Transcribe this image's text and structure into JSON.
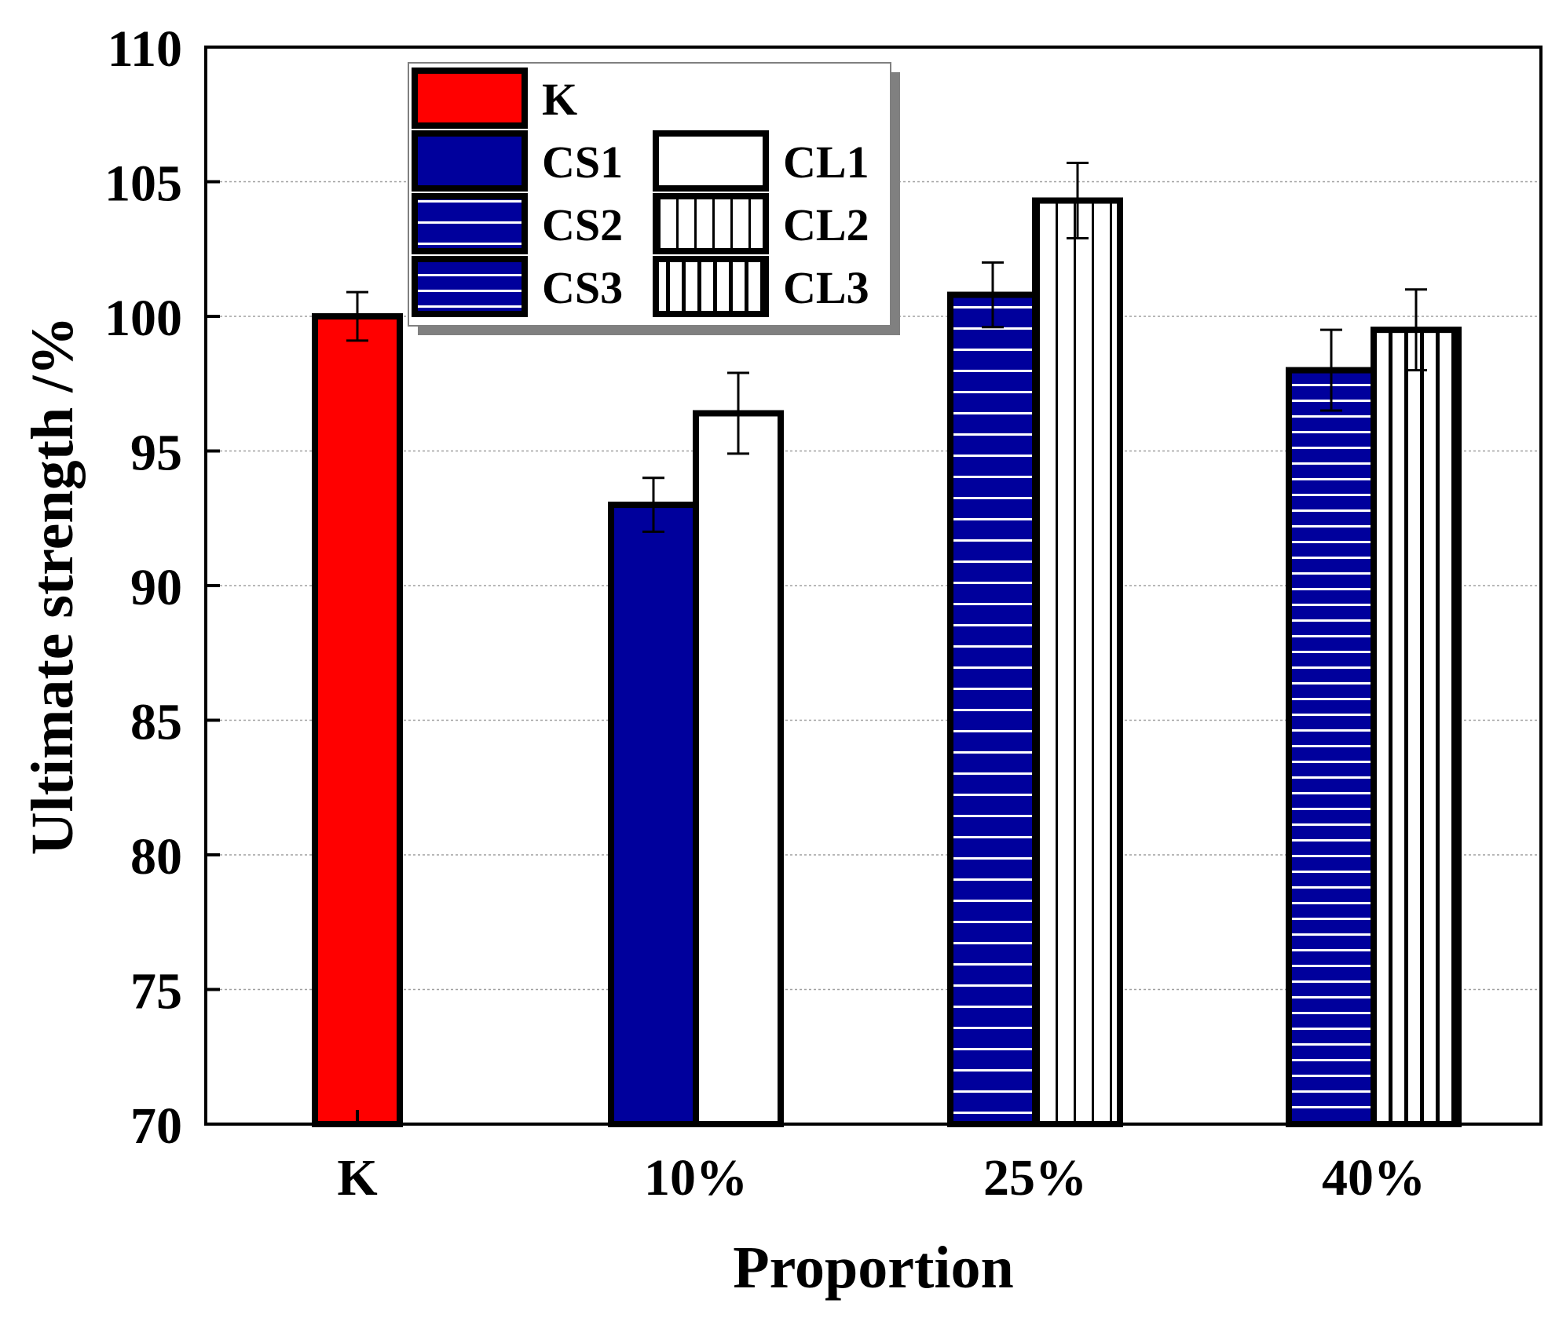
{
  "chart_data": {
    "type": "bar",
    "title": "",
    "xlabel": "Proportion",
    "ylabel": "Ultimate strength /%",
    "ylim": [
      70,
      110
    ],
    "yticks": [
      70,
      75,
      80,
      85,
      90,
      95,
      100,
      105,
      110
    ],
    "grid": true,
    "legend_position": "top-left",
    "categories": [
      "K",
      "10%",
      "25%",
      "40%"
    ],
    "series": [
      {
        "name": "K",
        "category": "K",
        "value": 100.0,
        "error": 0.9,
        "fill": "#ff0000",
        "pattern": "solid"
      },
      {
        "name": "CS1",
        "category": "10%",
        "value": 93.0,
        "error": 1.0,
        "fill": "#00009c",
        "pattern": "solid"
      },
      {
        "name": "CL1",
        "category": "10%",
        "value": 96.4,
        "error": 1.5,
        "fill": "#ffffff",
        "pattern": "solid"
      },
      {
        "name": "CS2",
        "category": "25%",
        "value": 100.8,
        "error": 1.2,
        "fill": "#00009c",
        "pattern": "h-lines"
      },
      {
        "name": "CL2",
        "category": "25%",
        "value": 104.3,
        "error": 1.4,
        "fill": "#ffffff",
        "pattern": "v-lines"
      },
      {
        "name": "CS3",
        "category": "40%",
        "value": 98.0,
        "error": 1.5,
        "fill": "#00009c",
        "pattern": "h-lines-dense"
      },
      {
        "name": "CL3",
        "category": "40%",
        "value": 99.5,
        "error": 1.5,
        "fill": "#ffffff",
        "pattern": "v-lines-dense"
      }
    ],
    "legend": [
      "K",
      "CS1",
      "CL1",
      "CS2",
      "CL2",
      "CS3",
      "CL3"
    ]
  }
}
